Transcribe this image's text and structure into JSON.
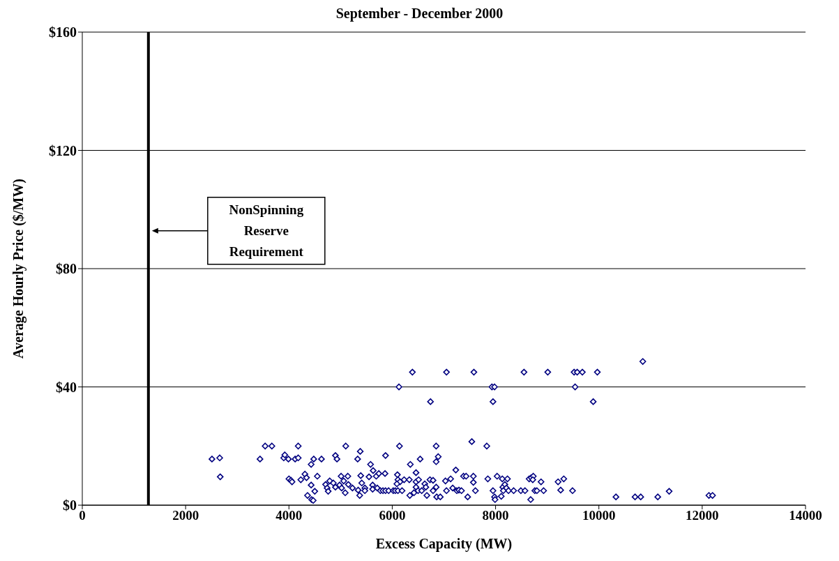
{
  "chart_data": {
    "type": "scatter",
    "title": "September - December 2000",
    "xlabel": "Excess Capacity (MW)",
    "ylabel": "Average Hourly Price ($/MW)",
    "xlim": [
      0,
      14000
    ],
    "xticks": [
      0,
      2000,
      4000,
      6000,
      8000,
      10000,
      12000,
      14000
    ],
    "ylim": [
      0,
      160
    ],
    "yticks": [
      {
        "value": 0,
        "label": "$0"
      },
      {
        "value": 40,
        "label": "$40"
      },
      {
        "value": 80,
        "label": "$80"
      },
      {
        "value": 120,
        "label": "$120"
      },
      {
        "value": 160,
        "label": "$160"
      }
    ],
    "grid": "y",
    "marker": "diamond",
    "legend": false,
    "ref_lines": [
      {
        "axis": "x",
        "value": 1280,
        "color": "#000000"
      }
    ],
    "annotations": [
      "NonSpinning Reserve Requirement"
    ],
    "series": [
      {
        "color": "#000080",
        "x": [
          6390,
          6130,
          6740,
          7050,
          7580,
          7930,
          7980,
          7950,
          8550,
          9010,
          9520,
          9580,
          9680,
          9540,
          9890,
          9970,
          10850,
          2510,
          2660,
          2670,
          3440,
          3540,
          3670,
          3900,
          3920,
          3990,
          4120,
          4180,
          4180,
          4000,
          4040,
          4060,
          4230,
          4310,
          4340,
          4430,
          4480,
          4430,
          4500,
          4360,
          4440,
          4470,
          4550,
          4630,
          4710,
          4740,
          4760,
          4790,
          4860,
          4900,
          4900,
          4930,
          4980,
          5010,
          5020,
          5060,
          5090,
          5100,
          5140,
          5150,
          5230,
          5330,
          5380,
          5340,
          5370,
          5390,
          5410,
          5470,
          5470,
          5550,
          5580,
          5620,
          5630,
          5690,
          5740,
          5620,
          5710,
          5770,
          5820,
          5870,
          5860,
          5870,
          5930,
          6020,
          6060,
          6110,
          6140,
          6100,
          6110,
          6150,
          6230,
          6330,
          6090,
          6190,
          6350,
          6340,
          6460,
          6460,
          6510,
          6460,
          6500,
          6420,
          6540,
          6570,
          6630,
          6650,
          6670,
          6730,
          6790,
          6790,
          6850,
          6850,
          6890,
          6850,
          6860,
          6930,
          7030,
          7050,
          7130,
          7170,
          7230,
          7250,
          7290,
          7340,
          7380,
          7430,
          7460,
          7540,
          7570,
          7570,
          7610,
          7830,
          7850,
          7950,
          7980,
          7990,
          8030,
          8130,
          8140,
          8180,
          8210,
          8230,
          8250,
          8110,
          8150,
          8350,
          8490,
          8570,
          8680,
          8650,
          8690,
          8730,
          8720,
          8880,
          8760,
          8800,
          8930,
          9210,
          9320,
          9260,
          9490,
          10330,
          10700,
          10810,
          11140,
          11360,
          12130,
          12200
        ],
        "values": [
          45,
          40,
          35,
          45,
          45,
          40,
          40,
          35,
          45,
          45,
          45,
          45,
          45,
          40,
          35,
          45,
          48.6,
          15.6,
          16,
          9.6,
          15.6,
          20,
          20,
          16,
          17,
          15.6,
          15.6,
          16,
          20,
          8.9,
          8.4,
          7.9,
          8.6,
          10.5,
          9.3,
          13.8,
          15.6,
          6.8,
          4.7,
          3.3,
          1.9,
          1.6,
          9.8,
          15.6,
          7,
          5.8,
          4.7,
          8.2,
          7.5,
          6.1,
          16.8,
          15.6,
          6.8,
          9.8,
          5.8,
          8.2,
          4.2,
          20,
          9.8,
          7,
          5.8,
          15.6,
          18.2,
          5.1,
          3.3,
          10,
          7.5,
          5.8,
          4.9,
          9.6,
          13.8,
          6.8,
          11.7,
          9.8,
          10.7,
          5.4,
          5.8,
          4.9,
          4.9,
          4.9,
          10.7,
          16.8,
          4.9,
          4.9,
          4.9,
          4.9,
          20,
          10.3,
          8.6,
          7.9,
          8.6,
          8.6,
          7.2,
          4.9,
          13.8,
          3.3,
          11,
          7.9,
          8.6,
          6.1,
          4.9,
          4.2,
          15.6,
          4.9,
          7.2,
          6.1,
          3.3,
          8.6,
          8.4,
          4.9,
          6.1,
          20,
          16.4,
          14.7,
          2.8,
          2.8,
          8.2,
          4.9,
          8.9,
          5.8,
          11.9,
          4.9,
          5.1,
          4.9,
          9.8,
          9.8,
          2.8,
          21.5,
          9.8,
          7.7,
          4.9,
          20,
          8.9,
          4.9,
          2.8,
          1.9,
          9.8,
          8.9,
          6.1,
          7,
          5.8,
          8.9,
          4.9,
          3,
          4.9,
          4.9,
          4.9,
          4.9,
          1.9,
          8.9,
          9.3,
          9.8,
          8.6,
          7.9,
          4.9,
          4.9,
          4.9,
          7.9,
          8.9,
          5.1,
          4.9,
          2.8,
          2.8,
          2.8,
          2.8,
          4.7,
          3.3,
          3.3
        ]
      }
    ]
  }
}
